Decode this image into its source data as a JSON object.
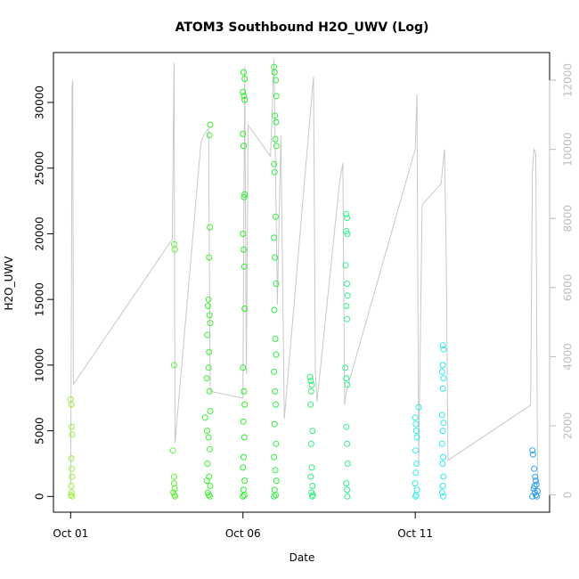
{
  "chart_data": {
    "type": "scatter",
    "title": "ATOM3 Southbound H2O_UWV (Log)",
    "xlabel": "Date",
    "ylabel": "H2O_UWV",
    "x_ticks": [
      "Oct 01",
      "Oct 06",
      "Oct 11"
    ],
    "x_tick_days": [
      1,
      6,
      11
    ],
    "xlim_days": [
      0.5,
      14.9
    ],
    "ylim": [
      -1200,
      33800
    ],
    "y_ticks": [
      0,
      5000,
      10000,
      15000,
      20000,
      25000,
      30000
    ],
    "y2lim": [
      -500,
      12800
    ],
    "y2_ticks": [
      0,
      2000,
      4000,
      6000,
      8000,
      10000,
      12000
    ],
    "grid": false,
    "line_series": {
      "color": "#c8c8c8",
      "points": [
        [
          1.0,
          300
        ],
        [
          1.02,
          5000
        ],
        [
          1.04,
          11800
        ],
        [
          1.06,
          12000
        ],
        [
          1.08,
          3200
        ],
        [
          3.95,
          7400
        ],
        [
          4.0,
          12500
        ],
        [
          4.03,
          1500
        ],
        [
          4.78,
          10200
        ],
        [
          4.85,
          10400
        ],
        [
          4.92,
          10500
        ],
        [
          5.0,
          10600
        ],
        [
          5.05,
          3000
        ],
        [
          6.0,
          2800
        ],
        [
          6.05,
          12400
        ],
        [
          6.1,
          3500
        ],
        [
          6.15,
          10700
        ],
        [
          6.8,
          9800
        ],
        [
          6.9,
          12600
        ],
        [
          7.0,
          5500
        ],
        [
          7.1,
          10400
        ],
        [
          7.2,
          2200
        ],
        [
          7.95,
          11000
        ],
        [
          8.05,
          12100
        ],
        [
          8.1,
          3600
        ],
        [
          8.15,
          2700
        ],
        [
          8.8,
          9000
        ],
        [
          8.9,
          9600
        ],
        [
          8.95,
          2600
        ],
        [
          9.0,
          3000
        ],
        [
          11.0,
          10000
        ],
        [
          11.05,
          11600
        ],
        [
          11.1,
          900
        ],
        [
          11.2,
          8400
        ],
        [
          11.75,
          9000
        ],
        [
          11.85,
          10000
        ],
        [
          11.9,
          6800
        ],
        [
          11.95,
          1000
        ],
        [
          14.35,
          2600
        ],
        [
          14.4,
          9400
        ],
        [
          14.45,
          10000
        ],
        [
          14.5,
          9900
        ],
        [
          14.55,
          300
        ]
      ]
    },
    "series": [
      {
        "name": "",
        "color": "#98f03c",
        "points": [
          [
            1.0,
            7400
          ],
          [
            1.02,
            7000
          ],
          [
            1.03,
            5300
          ],
          [
            1.04,
            4700
          ],
          [
            1.02,
            2900
          ],
          [
            1.03,
            2100
          ],
          [
            1.04,
            1500
          ],
          [
            1.02,
            800
          ],
          [
            1.03,
            300
          ],
          [
            1.01,
            100
          ],
          [
            1.04,
            0
          ]
        ]
      },
      {
        "name": "",
        "color": "#5ef03a",
        "points": [
          [
            4.0,
            19200
          ],
          [
            4.02,
            18800
          ],
          [
            4.0,
            10000
          ],
          [
            3.97,
            3500
          ],
          [
            4.0,
            1000
          ],
          [
            4.02,
            600
          ],
          [
            3.98,
            300
          ],
          [
            4.01,
            100
          ],
          [
            4.03,
            0
          ],
          [
            4.0,
            1500
          ]
        ]
      },
      {
        "name": "",
        "color": "#3cf02e",
        "points": [
          [
            5.05,
            28300
          ],
          [
            5.03,
            27500
          ],
          [
            5.04,
            20500
          ],
          [
            5.02,
            18200
          ],
          [
            5.0,
            15000
          ],
          [
            4.98,
            14500
          ],
          [
            5.03,
            13800
          ],
          [
            5.05,
            13200
          ],
          [
            4.97,
            12300
          ],
          [
            5.02,
            11000
          ],
          [
            5.0,
            9800
          ],
          [
            4.95,
            9000
          ],
          [
            5.03,
            8000
          ],
          [
            5.05,
            6500
          ],
          [
            4.96,
            5000
          ],
          [
            5.0,
            4500
          ],
          [
            5.04,
            3600
          ],
          [
            4.97,
            2500
          ],
          [
            5.02,
            1500
          ],
          [
            5.05,
            800
          ],
          [
            4.98,
            300
          ],
          [
            5.01,
            100
          ],
          [
            5.04,
            0
          ],
          [
            4.9,
            6000
          ],
          [
            4.95,
            1200
          ]
        ]
      },
      {
        "name": "",
        "color": "#28f028",
        "points": [
          [
            6.02,
            32300
          ],
          [
            6.05,
            31800
          ],
          [
            6.0,
            30800
          ],
          [
            6.03,
            30500
          ],
          [
            6.05,
            30200
          ],
          [
            6.0,
            27600
          ],
          [
            6.02,
            26700
          ],
          [
            6.05,
            23000
          ],
          [
            6.03,
            22800
          ],
          [
            6.0,
            20000
          ],
          [
            6.02,
            18800
          ],
          [
            6.04,
            17500
          ],
          [
            6.05,
            14300
          ],
          [
            6.0,
            9800
          ],
          [
            6.03,
            8000
          ],
          [
            6.05,
            7000
          ],
          [
            6.01,
            5700
          ],
          [
            6.04,
            4500
          ],
          [
            6.02,
            3000
          ],
          [
            6.0,
            2200
          ],
          [
            6.05,
            1200
          ],
          [
            6.02,
            500
          ],
          [
            6.04,
            100
          ],
          [
            6.0,
            0
          ]
        ]
      },
      {
        "name": "",
        "color": "#2cf040",
        "points": [
          [
            6.9,
            32700
          ],
          [
            6.92,
            32300
          ],
          [
            6.95,
            31700
          ],
          [
            6.97,
            30500
          ],
          [
            6.93,
            29000
          ],
          [
            6.96,
            28500
          ],
          [
            6.94,
            27200
          ],
          [
            6.97,
            26700
          ],
          [
            6.9,
            25300
          ],
          [
            6.92,
            24700
          ],
          [
            6.95,
            21300
          ],
          [
            6.9,
            19700
          ],
          [
            6.93,
            18200
          ],
          [
            6.96,
            16200
          ],
          [
            6.91,
            14200
          ],
          [
            6.94,
            12000
          ],
          [
            6.96,
            10800
          ],
          [
            6.9,
            9500
          ],
          [
            6.93,
            8000
          ],
          [
            6.95,
            7000
          ],
          [
            6.92,
            5500
          ],
          [
            6.96,
            4000
          ],
          [
            6.9,
            3000
          ],
          [
            6.94,
            2000
          ],
          [
            6.97,
            1200
          ],
          [
            6.92,
            500
          ],
          [
            6.95,
            100
          ],
          [
            6.9,
            0
          ]
        ]
      },
      {
        "name": "",
        "color": "#30f07a",
        "points": [
          [
            7.95,
            9100
          ],
          [
            7.97,
            8800
          ],
          [
            8.0,
            8500
          ],
          [
            7.98,
            8000
          ],
          [
            7.96,
            7000
          ],
          [
            8.02,
            5000
          ],
          [
            7.98,
            4000
          ],
          [
            8.0,
            2200
          ],
          [
            7.97,
            1500
          ],
          [
            8.02,
            800
          ],
          [
            7.99,
            300
          ],
          [
            8.01,
            0
          ],
          [
            8.03,
            100
          ]
        ]
      },
      {
        "name": "",
        "color": "#30f08c",
        "points": [
          [
            9.0,
            21500
          ],
          [
            9.02,
            21200
          ],
          [
            9.0,
            20200
          ],
          [
            9.03,
            20000
          ],
          [
            8.98,
            17600
          ],
          [
            9.02,
            16200
          ],
          [
            9.04,
            15300
          ],
          [
            9.0,
            14500
          ],
          [
            9.02,
            13500
          ],
          [
            8.97,
            9800
          ],
          [
            9.0,
            9000
          ],
          [
            9.03,
            8500
          ],
          [
            9.0,
            5300
          ],
          [
            9.02,
            4000
          ],
          [
            9.04,
            2500
          ],
          [
            9.0,
            1000
          ],
          [
            9.02,
            500
          ],
          [
            9.03,
            0
          ]
        ]
      },
      {
        "name": "",
        "color": "#2ef0e8",
        "points": [
          [
            11.0,
            6000
          ],
          [
            11.02,
            5500
          ],
          [
            11.03,
            5000
          ],
          [
            11.05,
            4500
          ],
          [
            11.01,
            3500
          ],
          [
            11.04,
            2500
          ],
          [
            11.02,
            1800
          ],
          [
            11.0,
            1000
          ],
          [
            11.05,
            500
          ],
          [
            11.03,
            100
          ],
          [
            11.01,
            0
          ],
          [
            11.1,
            6800
          ]
        ]
      },
      {
        "name": "",
        "color": "#2ee8f0",
        "points": [
          [
            11.8,
            11500
          ],
          [
            11.82,
            11200
          ],
          [
            11.8,
            10000
          ],
          [
            11.78,
            9500
          ],
          [
            11.82,
            9000
          ],
          [
            11.8,
            8200
          ],
          [
            11.78,
            6200
          ],
          [
            11.82,
            5600
          ],
          [
            11.8,
            5000
          ],
          [
            11.78,
            4000
          ],
          [
            11.81,
            3000
          ],
          [
            11.79,
            2500
          ],
          [
            11.82,
            1500
          ],
          [
            11.8,
            800
          ],
          [
            11.78,
            300
          ],
          [
            11.81,
            0
          ]
        ]
      },
      {
        "name": "",
        "color": "#2ea0f0",
        "points": [
          [
            14.4,
            3500
          ],
          [
            14.42,
            3200
          ],
          [
            14.45,
            2100
          ],
          [
            14.48,
            1500
          ],
          [
            14.5,
            1200
          ],
          [
            14.52,
            900
          ],
          [
            14.44,
            600
          ],
          [
            14.47,
            300
          ],
          [
            14.5,
            100
          ],
          [
            14.53,
            0
          ],
          [
            14.4,
            0
          ],
          [
            14.46,
            800
          ],
          [
            14.55,
            400
          ]
        ]
      }
    ]
  }
}
